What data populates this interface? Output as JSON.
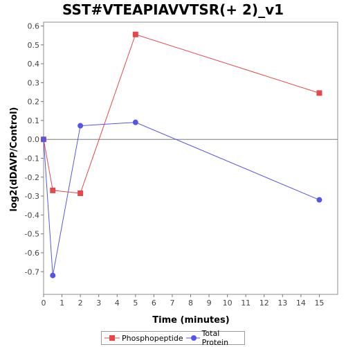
{
  "chart_data": {
    "type": "line",
    "title": "SST#VTEAPIAVVTSR(+ 2)_v1",
    "xlabel": "Time (minutes)",
    "ylabel": "log2(dDAVP/Control)",
    "xlim": [
      0,
      16
    ],
    "ylim": [
      -0.82,
      0.62
    ],
    "x_ticks": [
      0,
      1,
      2,
      3,
      4,
      5,
      6,
      7,
      8,
      9,
      10,
      11,
      12,
      13,
      14,
      15
    ],
    "y_ticks": [
      -0.7,
      -0.6,
      -0.5,
      -0.4,
      -0.3,
      -0.2,
      -0.1,
      0.0,
      0.1,
      0.2,
      0.3,
      0.4,
      0.5,
      0.6
    ],
    "grid": false,
    "zero_line": true,
    "legend_position": "bottom",
    "series": [
      {
        "name": "Phosphopeptide",
        "color": "#e8474a",
        "marker": "square",
        "x": [
          0,
          0.5,
          2,
          5,
          15
        ],
        "y": [
          0.0,
          -0.27,
          -0.285,
          0.555,
          0.245
        ]
      },
      {
        "name": "Total Protein",
        "color": "#5555e8",
        "marker": "circle",
        "x": [
          0,
          0.5,
          2,
          5,
          15
        ],
        "y": [
          0.0,
          -0.72,
          0.072,
          0.09,
          -0.32
        ]
      }
    ]
  }
}
